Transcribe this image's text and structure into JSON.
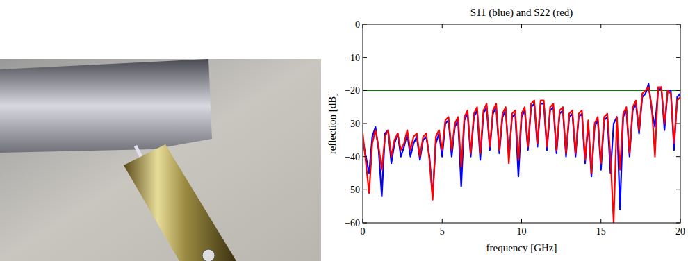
{
  "chart_data": {
    "type": "line",
    "title": "S11 (blue) and S22 (red)",
    "x_label": "frequency [GHz]",
    "y_label": "reflection [dB]",
    "x": [
      0,
      0.2,
      0.4,
      0.6,
      0.8,
      1,
      1.2,
      1.4,
      1.6,
      1.8,
      2,
      2.2,
      2.4,
      2.6,
      2.8,
      3,
      3.2,
      3.4,
      3.6,
      3.8,
      4,
      4.2,
      4.4,
      4.6,
      4.8,
      5,
      5.2,
      5.4,
      5.6,
      5.8,
      6,
      6.2,
      6.4,
      6.6,
      6.8,
      7,
      7.2,
      7.4,
      7.6,
      7.8,
      8,
      8.2,
      8.4,
      8.6,
      8.8,
      9,
      9.2,
      9.4,
      9.6,
      9.8,
      10,
      10.2,
      10.4,
      10.6,
      10.8,
      11,
      11.2,
      11.4,
      11.6,
      11.8,
      12,
      12.2,
      12.4,
      12.6,
      12.8,
      13,
      13.2,
      13.4,
      13.6,
      13.8,
      14,
      14.2,
      14.4,
      14.6,
      14.8,
      15,
      15.2,
      15.4,
      15.6,
      15.8,
      16,
      16.2,
      16.4,
      16.6,
      16.8,
      17,
      17.2,
      17.4,
      17.6,
      17.8,
      18,
      18.2,
      18.4,
      18.6,
      18.8,
      19,
      19.2,
      19.4,
      19.6,
      19.8,
      20
    ],
    "series": [
      {
        "color": "#0000ff",
        "values": [
          -35,
          -40,
          -45,
          -34,
          -31,
          -38,
          -52,
          -33,
          -32,
          -42,
          -36,
          -33,
          -40,
          -37,
          -33,
          -40,
          -36,
          -34,
          -41,
          -35,
          -34,
          -40,
          -52,
          -36,
          -33,
          -40,
          -30,
          -29,
          -40,
          -31,
          -29,
          -49,
          -29,
          -27,
          -40,
          -28,
          -26,
          -41,
          -27,
          -25,
          -38,
          -27,
          -25,
          -39,
          -28,
          -26,
          -40,
          -28,
          -27,
          -46,
          -28,
          -26,
          -38,
          -25,
          -24,
          -37,
          -24,
          -24,
          -38,
          -26,
          -25,
          -39,
          -27,
          -26,
          -40,
          -28,
          -27,
          -40,
          -28,
          -27,
          -42,
          -30,
          -46,
          -31,
          -29,
          -44,
          -29,
          -28,
          -45,
          -30,
          -28,
          -56,
          -28,
          -26,
          -40,
          -26,
          -24,
          -33,
          -22,
          -21,
          -18,
          -26,
          -31,
          -20,
          -19,
          -32,
          -20,
          -20,
          -38,
          -22,
          -21
        ]
      },
      {
        "color": "#ff0000",
        "values": [
          -33,
          -42,
          -51,
          -36,
          -32,
          -37,
          -44,
          -34,
          -32,
          -40,
          -35,
          -33,
          -38,
          -36,
          -32,
          -38,
          -34,
          -33,
          -40,
          -34,
          -33,
          -41,
          -53,
          -34,
          -32,
          -38,
          -29,
          -28,
          -38,
          -30,
          -28,
          -43,
          -28,
          -26,
          -39,
          -27,
          -25,
          -39,
          -26,
          -24,
          -37,
          -26,
          -24,
          -38,
          -27,
          -25,
          -42,
          -27,
          -26,
          -41,
          -27,
          -25,
          -37,
          -24,
          -23,
          -36,
          -23,
          -23,
          -37,
          -25,
          -24,
          -38,
          -26,
          -25,
          -39,
          -27,
          -26,
          -39,
          -27,
          -26,
          -41,
          -29,
          -45,
          -30,
          -28,
          -42,
          -28,
          -27,
          -40,
          -60,
          -28,
          -44,
          -27,
          -25,
          -39,
          -25,
          -23,
          -32,
          -21,
          -20,
          -19,
          -25,
          -40,
          -19,
          -19,
          -30,
          -20,
          -21,
          -36,
          -23,
          -22
        ]
      }
    ],
    "reference_lines": [
      {
        "value": -20,
        "color": "#008000"
      }
    ],
    "xlim": [
      0,
      20
    ],
    "xticks": [
      0,
      5,
      10,
      15,
      20
    ],
    "ylim": [
      -60,
      0
    ],
    "yticks": [
      -60,
      -50,
      -40,
      -30,
      -20,
      -10,
      0
    ],
    "grid": false
  }
}
